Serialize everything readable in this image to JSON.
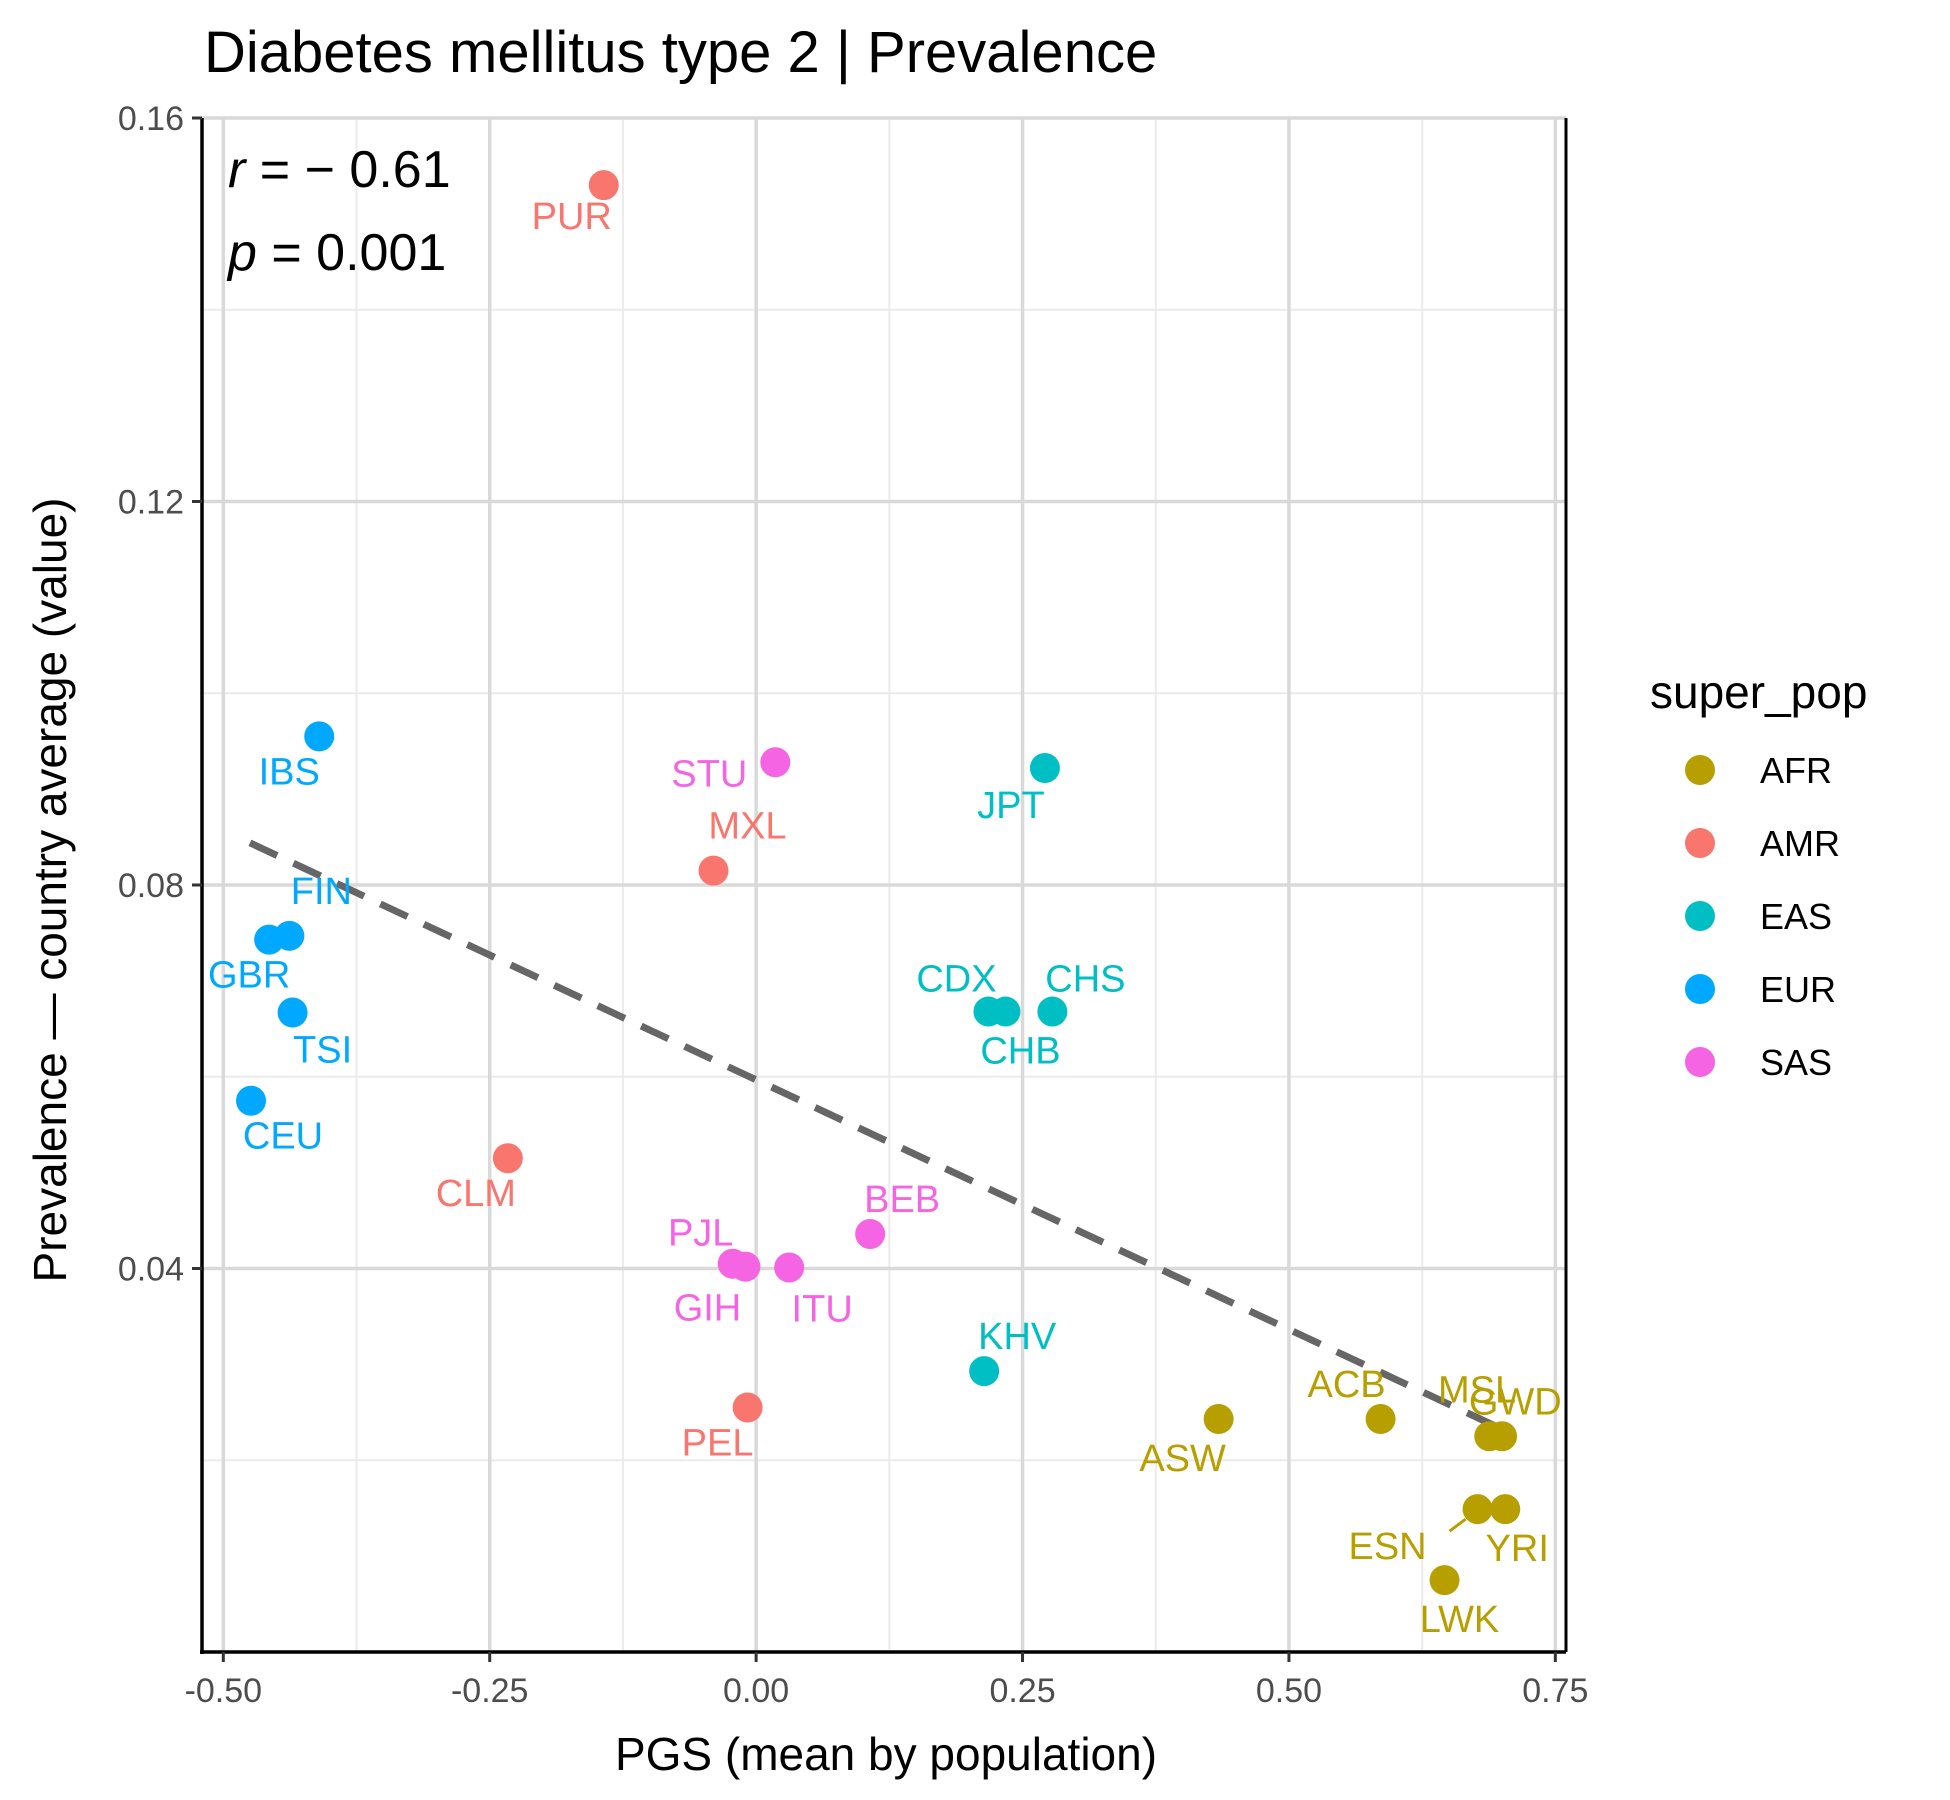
{
  "chart_data": {
    "type": "scatter",
    "title": "Diabetes mellitus type 2 | Prevalence",
    "xlabel": "PGS (mean by population)",
    "ylabel": "Prevalence — country average (value)",
    "xlim": [
      -0.52,
      0.76
    ],
    "ylim": [
      0.0,
      0.16
    ],
    "x_ticks": [
      -0.5,
      -0.25,
      0.0,
      0.25,
      0.5,
      0.75
    ],
    "x_tick_labels": [
      "-0.50",
      "-0.25",
      "0.00",
      "0.25",
      "0.50",
      "0.75"
    ],
    "y_ticks": [
      0.04,
      0.08,
      0.12,
      0.16
    ],
    "y_tick_labels": [
      "0.04",
      "0.08",
      "0.12",
      "0.16"
    ],
    "grid": true,
    "legend": {
      "title": "super_pop",
      "position": "right",
      "entries": [
        {
          "name": "AFR",
          "color": "#B79F00"
        },
        {
          "name": "AMR",
          "color": "#F8766D"
        },
        {
          "name": "EAS",
          "color": "#00BFC4"
        },
        {
          "name": "EUR",
          "color": "#00A9FF"
        },
        {
          "name": "SAS",
          "color": "#F564E3"
        }
      ]
    },
    "annotation": {
      "r_symbol": "r",
      "r_text": " = − 0.61",
      "p_symbol": "p",
      "p_text": " = 0.001"
    },
    "trendline": {
      "style": "dashed",
      "color": "#666666",
      "x": [
        -0.475,
        0.695
      ],
      "y": [
        0.0844,
        0.0235
      ]
    },
    "points": [
      {
        "label": "PUR",
        "group": "AMR",
        "x": -0.143,
        "y": 0.153
      },
      {
        "label": "MXL",
        "group": "AMR",
        "x": -0.04,
        "y": 0.0815
      },
      {
        "label": "CLM",
        "group": "AMR",
        "x": -0.233,
        "y": 0.0515
      },
      {
        "label": "PEL",
        "group": "AMR",
        "x": -0.008,
        "y": 0.0255
      },
      {
        "label": "IBS",
        "group": "EUR",
        "x": -0.41,
        "y": 0.0955
      },
      {
        "label": "FIN",
        "group": "EUR",
        "x": -0.438,
        "y": 0.0747
      },
      {
        "label": "GBR",
        "group": "EUR",
        "x": -0.457,
        "y": 0.0743
      },
      {
        "label": "TSI",
        "group": "EUR",
        "x": -0.435,
        "y": 0.0667
      },
      {
        "label": "CEU",
        "group": "EUR",
        "x": -0.474,
        "y": 0.0575
      },
      {
        "label": "STU",
        "group": "SAS",
        "x": 0.018,
        "y": 0.0928
      },
      {
        "label": "PJL",
        "group": "SAS",
        "x": -0.022,
        "y": 0.0405
      },
      {
        "label": "GIH",
        "group": "SAS",
        "x": -0.01,
        "y": 0.0402
      },
      {
        "label": "ITU",
        "group": "SAS",
        "x": 0.031,
        "y": 0.0401
      },
      {
        "label": "BEB",
        "group": "SAS",
        "x": 0.107,
        "y": 0.0436
      },
      {
        "label": "JPT",
        "group": "EAS",
        "x": 0.271,
        "y": 0.0922
      },
      {
        "label": "CDX",
        "group": "EAS",
        "x": 0.218,
        "y": 0.0668
      },
      {
        "label": "CHB",
        "group": "EAS",
        "x": 0.234,
        "y": 0.0668
      },
      {
        "label": "CHS",
        "group": "EAS",
        "x": 0.278,
        "y": 0.0668
      },
      {
        "label": "KHV",
        "group": "EAS",
        "x": 0.214,
        "y": 0.0293
      },
      {
        "label": "ASW",
        "group": "AFR",
        "x": 0.434,
        "y": 0.0243
      },
      {
        "label": "ACB",
        "group": "AFR",
        "x": 0.586,
        "y": 0.0243
      },
      {
        "label": "GWD",
        "group": "AFR",
        "x": 0.688,
        "y": 0.0225
      },
      {
        "label": "MSL",
        "group": "AFR",
        "x": 0.7,
        "y": 0.0225
      },
      {
        "label": "ESN",
        "group": "AFR",
        "x": 0.677,
        "y": 0.0149
      },
      {
        "label": "YRI",
        "group": "AFR",
        "x": 0.703,
        "y": 0.0149
      },
      {
        "label": "LWK",
        "group": "AFR",
        "x": 0.646,
        "y": 0.0075
      }
    ]
  }
}
